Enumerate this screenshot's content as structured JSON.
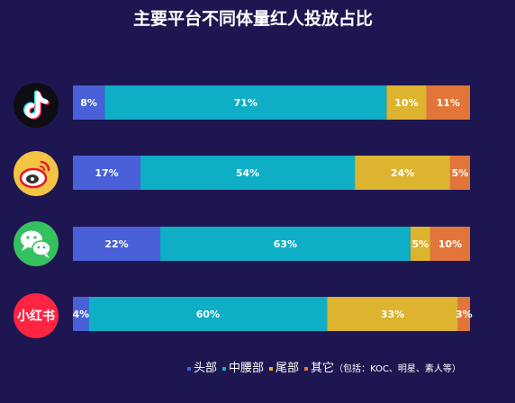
{
  "chart_data": {
    "type": "bar",
    "orientation": "horizontal",
    "stacked": true,
    "title": "主要平台不同体量红人投放占比",
    "categories": [
      "抖音",
      "微博",
      "微信",
      "小红书"
    ],
    "category_icons": [
      "tiktok-icon",
      "weibo-icon",
      "wechat-icon",
      "xiaohongshu-icon"
    ],
    "xlim": [
      0,
      100
    ],
    "grid": false,
    "legend_position": "bottom-right",
    "series": [
      {
        "name": "头部",
        "color": "#4a60d8",
        "values": [
          8,
          17,
          22,
          4
        ]
      },
      {
        "name": "中腰部",
        "color": "#0eaec6",
        "values": [
          71,
          54,
          63,
          60
        ]
      },
      {
        "name": "尾部",
        "color": "#ddb42f",
        "values": [
          10,
          24,
          5,
          33
        ]
      },
      {
        "name": "其它",
        "color": "#e2763a",
        "values": [
          11,
          5,
          10,
          3
        ]
      }
    ],
    "value_suffix": "%",
    "legend_note": "（包括：KOC、明星、素人等）"
  },
  "icons": {
    "xiaohongshu_text": "小红书"
  },
  "colors": {
    "background": "#1e1650",
    "tiktok_bg": "#0d0d12",
    "weibo_bg": "#f5c443",
    "wechat_bg": "#35c160",
    "xiaohongshu_bg": "#ff2442"
  }
}
